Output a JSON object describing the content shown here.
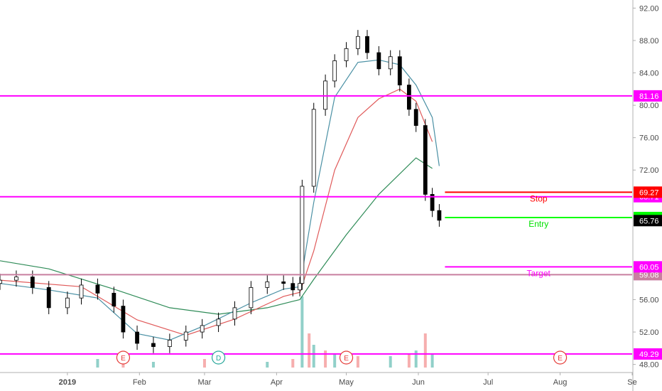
{
  "chart_data": {
    "type": "candlestick",
    "y_axis": {
      "ticks": [
        92,
        88,
        84,
        80,
        76,
        72,
        56,
        52,
        48
      ],
      "range": [
        47,
        93
      ],
      "side": "right"
    },
    "x_axis": {
      "labels": [
        {
          "text": "2019",
          "date": "2019-01-01"
        },
        {
          "text": "Feb",
          "date": "2019-02-01"
        },
        {
          "text": "Mar",
          "date": "2019-03-01"
        },
        {
          "text": "Apr",
          "date": "2019-04-01"
        },
        {
          "text": "May",
          "date": "2019-05-01"
        },
        {
          "text": "Jun",
          "date": "2019-06-01"
        },
        {
          "text": "Jul",
          "date": "2019-07-01"
        },
        {
          "text": "Aug",
          "date": "2019-08-01"
        },
        {
          "text": "Se",
          "date": "2019-09-01"
        }
      ],
      "range": [
        "2018-12-03",
        "2019-09-01"
      ]
    },
    "price_series": [
      [
        "2018-12-03",
        58.4
      ],
      [
        "2018-12-10",
        58.8
      ],
      [
        "2018-12-17",
        57.5
      ],
      [
        "2018-12-24",
        55.0
      ],
      [
        "2019-01-01",
        56.2
      ],
      [
        "2019-01-07",
        57.8
      ],
      [
        "2019-01-14",
        56.8
      ],
      [
        "2019-01-21",
        55.2
      ],
      [
        "2019-01-25",
        52.0
      ],
      [
        "2019-01-31",
        50.6
      ],
      [
        "2019-02-07",
        50.2
      ],
      [
        "2019-02-14",
        51.0
      ],
      [
        "2019-02-21",
        52.0
      ],
      [
        "2019-02-28",
        52.8
      ],
      [
        "2019-03-07",
        53.6
      ],
      [
        "2019-03-14",
        55.0
      ],
      [
        "2019-03-21",
        57.5
      ],
      [
        "2019-03-28",
        58.2
      ],
      [
        "2019-04-04",
        58.0
      ],
      [
        "2019-04-08",
        57.2
      ],
      [
        "2019-04-11",
        58.0
      ],
      [
        "2019-04-12",
        70.0
      ],
      [
        "2019-04-17",
        79.5
      ],
      [
        "2019-04-22",
        83.0
      ],
      [
        "2019-04-26",
        85.5
      ],
      [
        "2019-05-01",
        87.0
      ],
      [
        "2019-05-06",
        88.5
      ],
      [
        "2019-05-10",
        86.5
      ],
      [
        "2019-05-15",
        84.5
      ],
      [
        "2019-05-20",
        86.0
      ],
      [
        "2019-05-24",
        82.5
      ],
      [
        "2019-05-28",
        79.5
      ],
      [
        "2019-05-31",
        77.5
      ],
      [
        "2019-06-04",
        69.0
      ],
      [
        "2019-06-07",
        67.0
      ],
      [
        "2019-06-10",
        65.8
      ]
    ],
    "ma_fast": [
      [
        "2018-12-03",
        58.0
      ],
      [
        "2018-12-24",
        57.2
      ],
      [
        "2019-01-14",
        56.2
      ],
      [
        "2019-01-31",
        51.8
      ],
      [
        "2019-02-14",
        51.0
      ],
      [
        "2019-03-01",
        52.8
      ],
      [
        "2019-03-21",
        55.6
      ],
      [
        "2019-04-04",
        57.3
      ],
      [
        "2019-04-11",
        57.6
      ],
      [
        "2019-04-17",
        68.0
      ],
      [
        "2019-04-26",
        81.0
      ],
      [
        "2019-05-06",
        85.3
      ],
      [
        "2019-05-15",
        85.6
      ],
      [
        "2019-05-24",
        85.0
      ],
      [
        "2019-05-31",
        82.5
      ],
      [
        "2019-06-07",
        78.5
      ],
      [
        "2019-06-10",
        72.5
      ]
    ],
    "ma_medium": [
      [
        "2018-12-03",
        58.4
      ],
      [
        "2019-01-07",
        57.6
      ],
      [
        "2019-01-31",
        53.5
      ],
      [
        "2019-02-21",
        51.6
      ],
      [
        "2019-03-14",
        53.6
      ],
      [
        "2019-04-04",
        56.4
      ],
      [
        "2019-04-11",
        56.9
      ],
      [
        "2019-04-17",
        62.0
      ],
      [
        "2019-04-26",
        72.0
      ],
      [
        "2019-05-06",
        78.5
      ],
      [
        "2019-05-15",
        80.8
      ],
      [
        "2019-05-24",
        82.0
      ],
      [
        "2019-05-31",
        80.5
      ],
      [
        "2019-06-07",
        75.5
      ]
    ],
    "ma_slow": [
      [
        "2018-12-03",
        60.8
      ],
      [
        "2018-12-24",
        59.8
      ],
      [
        "2019-01-21",
        57.3
      ],
      [
        "2019-02-14",
        55.0
      ],
      [
        "2019-03-07",
        54.2
      ],
      [
        "2019-03-28",
        55.0
      ],
      [
        "2019-04-08",
        55.8
      ],
      [
        "2019-04-11",
        56.0
      ],
      [
        "2019-04-17",
        58.5
      ],
      [
        "2019-05-01",
        64.0
      ],
      [
        "2019-05-15",
        69.0
      ],
      [
        "2019-05-31",
        73.5
      ],
      [
        "2019-06-07",
        72.2
      ]
    ],
    "volume": [
      [
        "2019-01-14",
        3
      ],
      [
        "2019-01-25",
        4
      ],
      [
        "2019-02-07",
        2
      ],
      [
        "2019-03-01",
        3
      ],
      [
        "2019-03-28",
        2
      ],
      [
        "2019-04-08",
        3
      ],
      [
        "2019-04-12",
        25
      ],
      [
        "2019-04-15",
        12
      ],
      [
        "2019-04-17",
        8
      ],
      [
        "2019-04-22",
        6
      ],
      [
        "2019-04-26",
        5
      ],
      [
        "2019-05-06",
        4
      ],
      [
        "2019-05-20",
        4
      ],
      [
        "2019-05-28",
        5
      ],
      [
        "2019-05-31",
        6
      ],
      [
        "2019-06-04",
        12
      ],
      [
        "2019-06-07",
        5
      ]
    ],
    "horizontal_lines": [
      {
        "value": 81.16,
        "label": "81.16",
        "color": "#ff00ff"
      },
      {
        "value": 68.71,
        "label": "68.71",
        "color": "#ff00ff"
      },
      {
        "value": 59.08,
        "label": "59.08",
        "color": "#c87fa0"
      },
      {
        "value": 49.29,
        "label": "49.29",
        "color": "#ff00ff"
      }
    ],
    "trade_levels": [
      {
        "name": "Stop",
        "value": 69.27,
        "label": "69.27",
        "color": "#ff0000",
        "text_color": "#ff0000"
      },
      {
        "name": "Entry",
        "value": 66.14,
        "label": "66.14",
        "color": "#00ff00",
        "text_color": "#00e000"
      },
      {
        "name": "Target",
        "value": 60.05,
        "label": "60.05",
        "color": "#ff00ff",
        "text_color": "#ff00ff"
      }
    ],
    "last_price": {
      "value": 65.76,
      "label": "65.76",
      "color": "#000000"
    },
    "events": [
      {
        "symbol": "E",
        "date": "2019-01-25",
        "color": "#e53935"
      },
      {
        "symbol": "D",
        "date": "2019-03-07",
        "color": "#26a69a"
      },
      {
        "symbol": "E",
        "date": "2019-05-01",
        "color": "#e53935"
      },
      {
        "symbol": "E",
        "date": "2019-08-01",
        "color": "#e53935"
      }
    ],
    "colors": {
      "up": "#ffffff",
      "down": "#000000",
      "ma_fast": "#4a90a4",
      "ma_medium": "#e05a5a",
      "ma_slow": "#2e8b57",
      "volume_up": "#7ec8c0",
      "volume_down": "#f4a0a0"
    }
  }
}
